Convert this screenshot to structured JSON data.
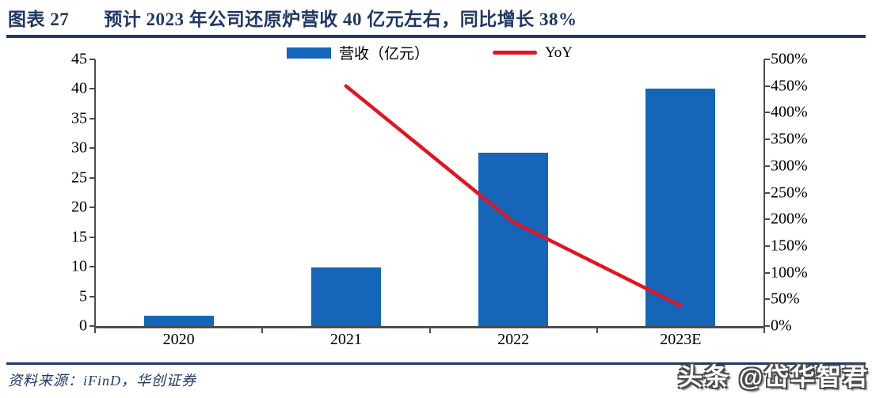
{
  "header": {
    "figure_label": "图表 27",
    "title": "预计 2023 年公司还原炉营收 40 亿元左右，同比增长 38%"
  },
  "footer": {
    "source": "资料来源：iFinD，华创证券",
    "watermark": "头条 @岱华智君"
  },
  "colors": {
    "navy": "#1f3864",
    "bar_blue": "#1565b8",
    "line_red": "#e11522",
    "axis_gray": "#4d4d4d"
  },
  "chart_data": {
    "type": "bar",
    "subtype": "bar+line-dual-axis",
    "title": "预计 2023 年公司还原炉营收 40 亿元左右，同比增长 38%",
    "categories": [
      "2020",
      "2021",
      "2022",
      "2023E"
    ],
    "series": [
      {
        "name": "营收（亿元）",
        "kind": "bar",
        "axis": "left",
        "color": "#1565b8",
        "values": [
          1.8,
          9.9,
          29.2,
          40.1
        ]
      },
      {
        "name": "YoY",
        "kind": "line",
        "axis": "right",
        "color": "#e11522",
        "unit": "%",
        "values": [
          null,
          450,
          195,
          38
        ]
      }
    ],
    "left_axis": {
      "min": 0,
      "max": 45,
      "step": 5,
      "ticks": [
        "0",
        "5",
        "10",
        "15",
        "20",
        "25",
        "30",
        "35",
        "40",
        "45"
      ]
    },
    "right_axis": {
      "min": 0,
      "max": 500,
      "step": 50,
      "ticks": [
        "0%",
        "50%",
        "100%",
        "150%",
        "200%",
        "250%",
        "300%",
        "350%",
        "400%",
        "450%",
        "500%"
      ]
    },
    "legend_position": "top",
    "grid": false
  }
}
